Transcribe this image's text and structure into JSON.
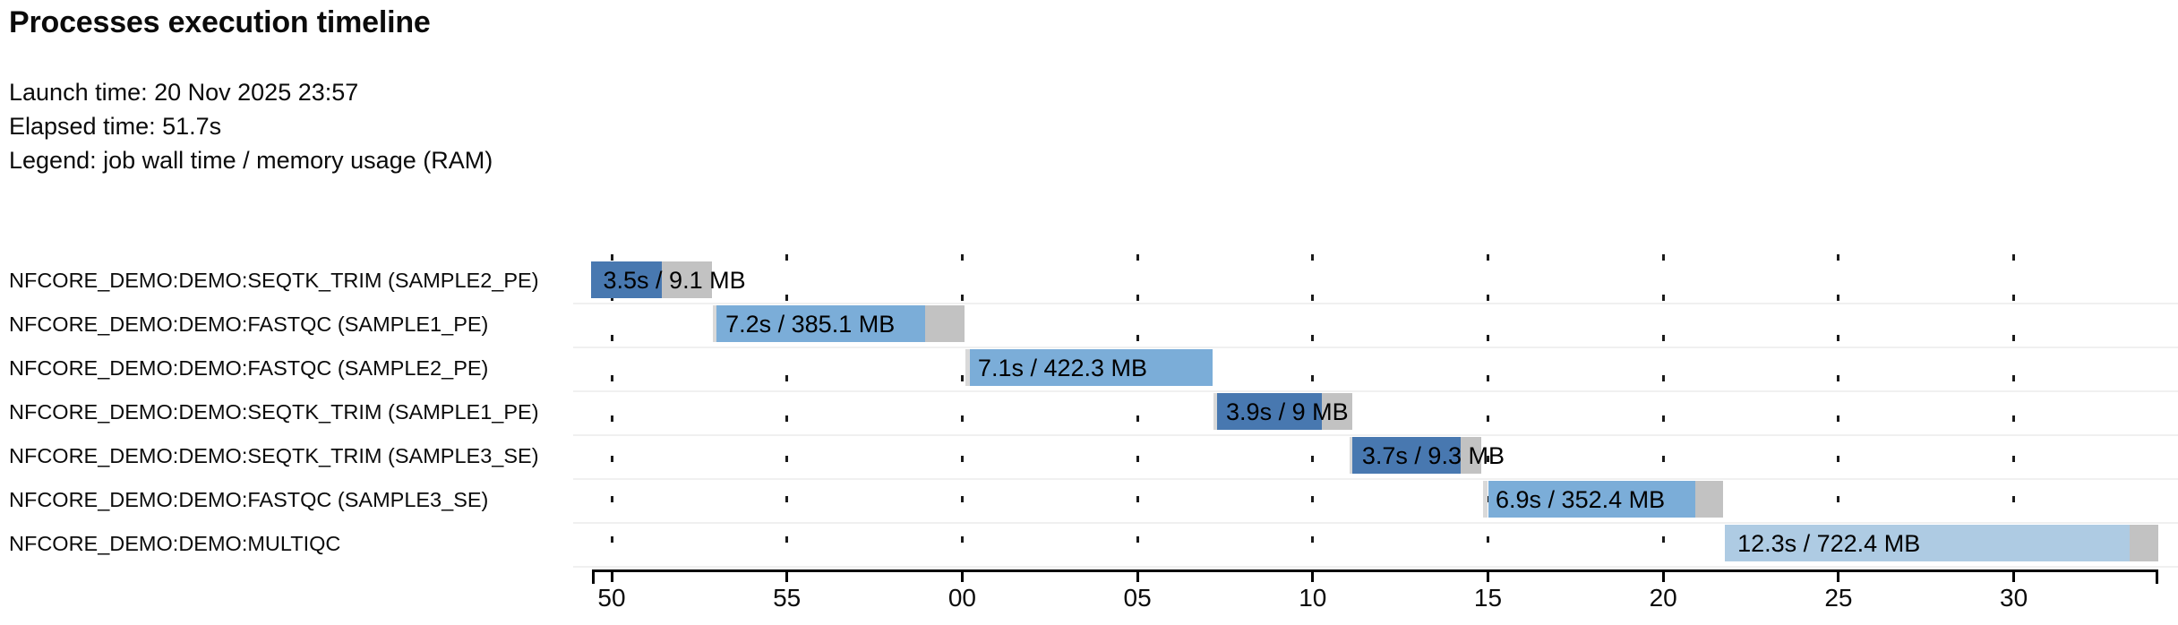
{
  "header": {
    "title": "Processes execution timeline",
    "launch_line": "Launch time: 20 Nov 2025 23:57",
    "elapsed_line": "Elapsed time: 51.7s",
    "legend_line": "Legend: job wall time / memory usage (RAM)"
  },
  "colors": {
    "dark_blue": "#4878b0",
    "mid_blue": "#7badd8",
    "pale_blue": "#aecbe3",
    "tail_gray": "#c2c2c2",
    "lead_gray": "#d9d9d9",
    "row_line": "#f0f0f0",
    "axis_black": "#000000"
  },
  "chart_data": {
    "type": "bar",
    "subtype": "gantt-timeline",
    "title": "Processes execution timeline",
    "launch_time": "20 Nov 2025 23:57",
    "elapsed_time_s": 51.7,
    "legend": "job wall time / memory usage (RAM)",
    "time_axis": {
      "note": "t = seconds since 23:57:00; tick labels show seconds of the wall clock (wrap at minute)",
      "domain_s": [
        49.4,
        94.15
      ],
      "ticks": [
        {
          "label": "50",
          "t": 50
        },
        {
          "label": "55",
          "t": 55
        },
        {
          "label": "00",
          "t": 60
        },
        {
          "label": "05",
          "t": 65
        },
        {
          "label": "10",
          "t": 70
        },
        {
          "label": "15",
          "t": 75
        },
        {
          "label": "20",
          "t": 80
        },
        {
          "label": "25",
          "t": 85
        },
        {
          "label": "30",
          "t": 90
        }
      ]
    },
    "tasks": [
      {
        "process": "NFCORE_DEMO:DEMO:SEQTK_TRIM (SAMPLE2_PE)",
        "label": "3.5s / 9.1 MB",
        "wall_time_s": 3.5,
        "memory": "9.1 MB",
        "segments": [
          {
            "start_s": 49.4,
            "end_s": 51.43,
            "color": "dark_blue"
          },
          {
            "start_s": 51.43,
            "end_s": 52.86,
            "color": "tail_gray"
          }
        ]
      },
      {
        "process": "NFCORE_DEMO:DEMO:FASTQC (SAMPLE1_PE)",
        "label": "7.2s / 385.1 MB",
        "wall_time_s": 7.2,
        "memory": "385.1 MB",
        "segments": [
          {
            "start_s": 52.89,
            "end_s": 53.0,
            "color": "lead_gray"
          },
          {
            "start_s": 53.0,
            "end_s": 58.94,
            "color": "mid_blue"
          },
          {
            "start_s": 58.94,
            "end_s": 60.07,
            "color": "tail_gray"
          }
        ]
      },
      {
        "process": "NFCORE_DEMO:DEMO:FASTQC (SAMPLE2_PE)",
        "label": "7.1s / 422.3 MB",
        "wall_time_s": 7.1,
        "memory": "422.3 MB",
        "segments": [
          {
            "start_s": 60.09,
            "end_s": 60.22,
            "color": "lead_gray"
          },
          {
            "start_s": 60.22,
            "end_s": 67.14,
            "color": "mid_blue"
          }
        ]
      },
      {
        "process": "NFCORE_DEMO:DEMO:SEQTK_TRIM (SAMPLE1_PE)",
        "label": "3.9s / 9 MB",
        "wall_time_s": 3.9,
        "memory": "9 MB",
        "segments": [
          {
            "start_s": 67.17,
            "end_s": 67.28,
            "color": "lead_gray"
          },
          {
            "start_s": 67.28,
            "end_s": 70.26,
            "color": "dark_blue"
          },
          {
            "start_s": 70.26,
            "end_s": 71.13,
            "color": "tail_gray"
          }
        ]
      },
      {
        "process": "NFCORE_DEMO:DEMO:SEQTK_TRIM (SAMPLE3_SE)",
        "label": "3.7s / 9.3 MB",
        "wall_time_s": 3.7,
        "memory": "9.3 MB",
        "segments": [
          {
            "start_s": 71.05,
            "end_s": 71.14,
            "color": "lead_gray"
          },
          {
            "start_s": 71.14,
            "end_s": 74.22,
            "color": "dark_blue"
          },
          {
            "start_s": 74.22,
            "end_s": 74.81,
            "color": "tail_gray"
          }
        ]
      },
      {
        "process": "NFCORE_DEMO:DEMO:FASTQC (SAMPLE3_SE)",
        "label": "6.9s / 352.4 MB",
        "wall_time_s": 6.9,
        "memory": "352.4 MB",
        "segments": [
          {
            "start_s": 74.86,
            "end_s": 75.0,
            "color": "lead_gray"
          },
          {
            "start_s": 75.0,
            "end_s": 80.92,
            "color": "mid_blue"
          },
          {
            "start_s": 80.92,
            "end_s": 81.71,
            "color": "tail_gray"
          }
        ]
      },
      {
        "process": "NFCORE_DEMO:DEMO:MULTIQC",
        "label": "12.3s / 722.4 MB",
        "wall_time_s": 12.3,
        "memory": "722.4 MB",
        "segments": [
          {
            "start_s": 81.76,
            "end_s": 93.31,
            "color": "pale_blue"
          },
          {
            "start_s": 93.31,
            "end_s": 94.13,
            "color": "tail_gray"
          }
        ]
      }
    ]
  }
}
